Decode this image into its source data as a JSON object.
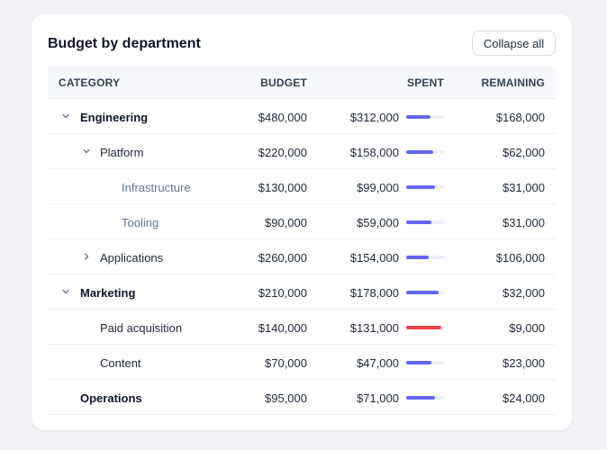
{
  "card": {
    "title": "Budget by department",
    "collapse_label": "Collapse all"
  },
  "columns": {
    "category": "CATEGORY",
    "budget": "BUDGET",
    "spent": "SPENT",
    "remaining": "REMAINING"
  },
  "colors": {
    "bar_normal": "#6366f1",
    "bar_over": "#ef4444",
    "bar_track": "#eef0f7"
  },
  "rows": [
    {
      "name": "Engineering",
      "level": 0,
      "toggle": "expanded",
      "budget": "$480,000",
      "spent": "$312,000",
      "remaining": "$168,000",
      "spent_fraction": 0.65,
      "status": "normal"
    },
    {
      "name": "Platform",
      "level": 1,
      "toggle": "expanded",
      "budget": "$220,000",
      "spent": "$158,000",
      "remaining": "$62,000",
      "spent_fraction": 0.72,
      "status": "normal"
    },
    {
      "name": "Infrastructure",
      "level": 2,
      "toggle": "none",
      "budget": "$130,000",
      "spent": "$99,000",
      "remaining": "$31,000",
      "spent_fraction": 0.76,
      "status": "normal"
    },
    {
      "name": "Tooling",
      "level": 2,
      "toggle": "none",
      "budget": "$90,000",
      "spent": "$59,000",
      "remaining": "$31,000",
      "spent_fraction": 0.66,
      "status": "normal"
    },
    {
      "name": "Applications",
      "level": 1,
      "toggle": "collapsed",
      "budget": "$260,000",
      "spent": "$154,000",
      "remaining": "$106,000",
      "spent_fraction": 0.59,
      "status": "normal"
    },
    {
      "name": "Marketing",
      "level": 0,
      "toggle": "expanded",
      "budget": "$210,000",
      "spent": "$178,000",
      "remaining": "$32,000",
      "spent_fraction": 0.85,
      "status": "normal"
    },
    {
      "name": "Paid acquisition",
      "level": 1,
      "toggle": "none",
      "budget": "$140,000",
      "spent": "$131,000",
      "remaining": "$9,000",
      "spent_fraction": 0.94,
      "status": "over"
    },
    {
      "name": "Content",
      "level": 1,
      "toggle": "none",
      "budget": "$70,000",
      "spent": "$47,000",
      "remaining": "$23,000",
      "spent_fraction": 0.67,
      "status": "normal"
    },
    {
      "name": "Operations",
      "level": 0,
      "toggle": "none",
      "budget": "$95,000",
      "spent": "$71,000",
      "remaining": "$24,000",
      "spent_fraction": 0.75,
      "status": "normal"
    }
  ]
}
